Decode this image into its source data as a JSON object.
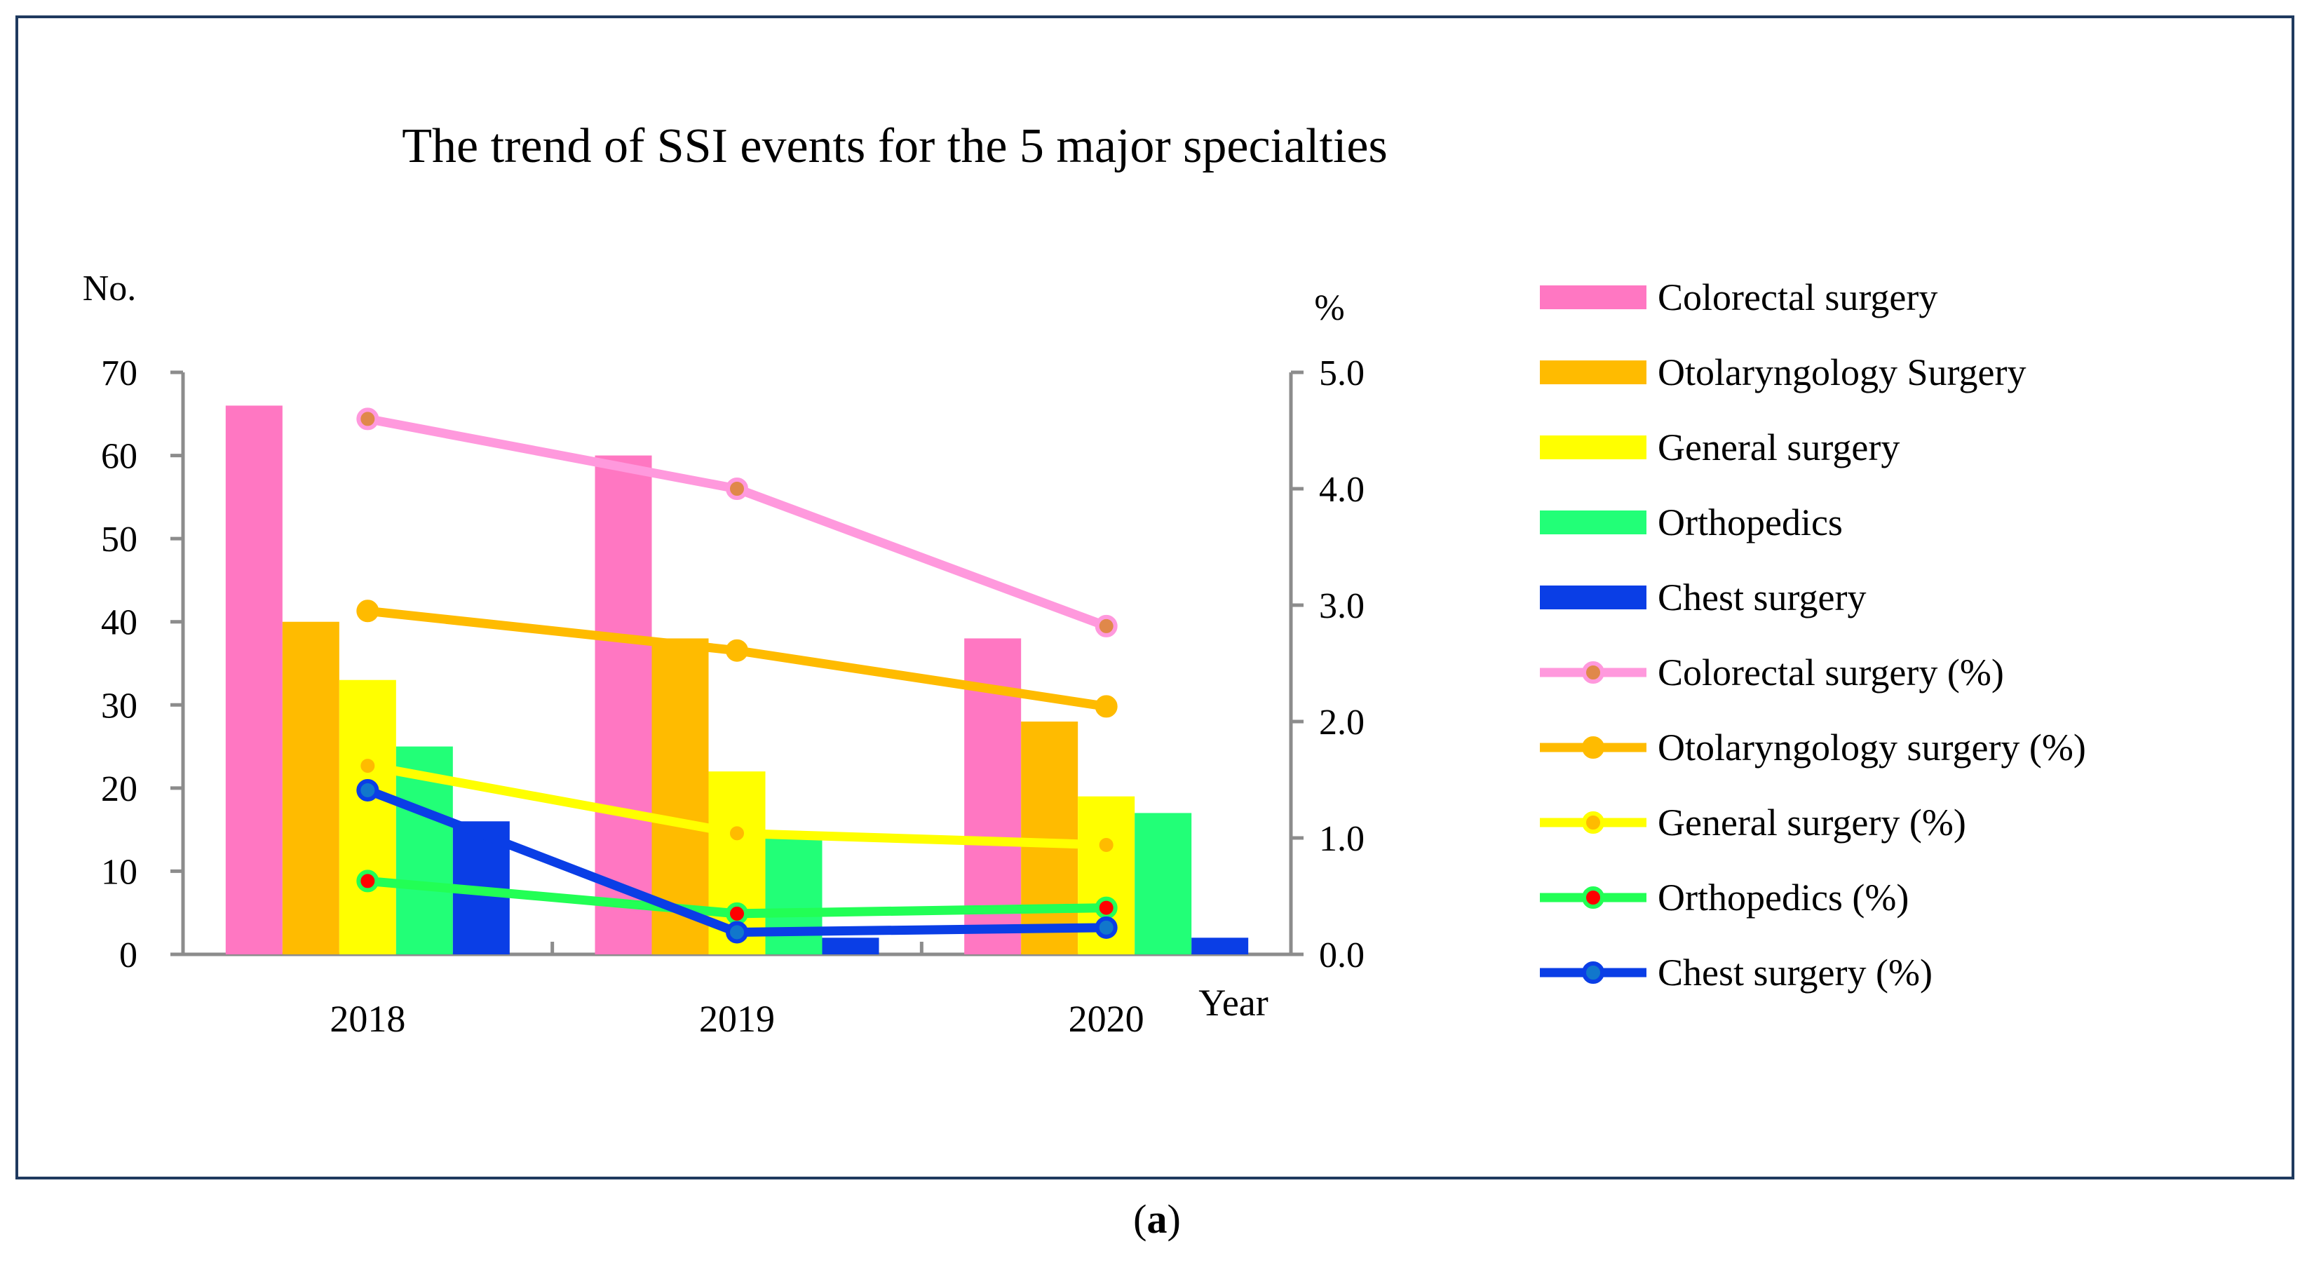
{
  "chart_data": {
    "type": "bar",
    "title": "The trend of SSI events for the 5 major specialties",
    "categories": [
      "2018",
      "2019",
      "2020"
    ],
    "xlabel": "Year",
    "ylabel": "No.",
    "y2label": "%",
    "ylim": [
      0,
      70
    ],
    "y2lim": [
      0,
      5
    ],
    "yticks": [
      "0",
      "10",
      "20",
      "30",
      "40",
      "50",
      "60",
      "70"
    ],
    "y2ticks": [
      "0.0",
      "1.0",
      "2.0",
      "3.0",
      "4.0",
      "5.0"
    ],
    "grid": false,
    "legend_position": "right",
    "bar_series": [
      {
        "name": "Colorectal surgery",
        "color": "#ff77c2",
        "values": [
          66,
          60,
          38
        ]
      },
      {
        "name": "Otolaryngology Surgery",
        "color": "#ffbb00",
        "values": [
          40,
          38,
          28
        ]
      },
      {
        "name": "General surgery",
        "color": "#ffff00",
        "values": [
          33,
          22,
          19
        ]
      },
      {
        "name": "Orthopedics",
        "color": "#22ff77",
        "values": [
          25,
          14,
          17
        ]
      },
      {
        "name": "Chest surgery",
        "color": "#0a3ee6",
        "values": [
          16,
          2,
          2
        ]
      }
    ],
    "line_series": [
      {
        "name": "Colorectal surgery (%)",
        "color": "#ff99dd",
        "marker": "#e0884a",
        "values": [
          4.6,
          4.0,
          2.82
        ]
      },
      {
        "name": "Otolaryngology surgery (%)",
        "color": "#ffbb00",
        "marker": "#ffbb00",
        "values": [
          2.95,
          2.61,
          2.13
        ]
      },
      {
        "name": "General surgery  (%)",
        "color": "#ffff00",
        "marker": "#ffbb00",
        "values": [
          1.62,
          1.04,
          0.94
        ]
      },
      {
        "name": "Orthopedics (%)",
        "color": "#22ff55",
        "marker": "#ff0000",
        "values": [
          0.63,
          0.35,
          0.4
        ]
      },
      {
        "name": "Chest surgery (%)",
        "color": "#0a3ee6",
        "marker": "#1177cc",
        "values": [
          1.41,
          0.19,
          0.23
        ]
      }
    ]
  },
  "caption": {
    "letter": "a"
  }
}
